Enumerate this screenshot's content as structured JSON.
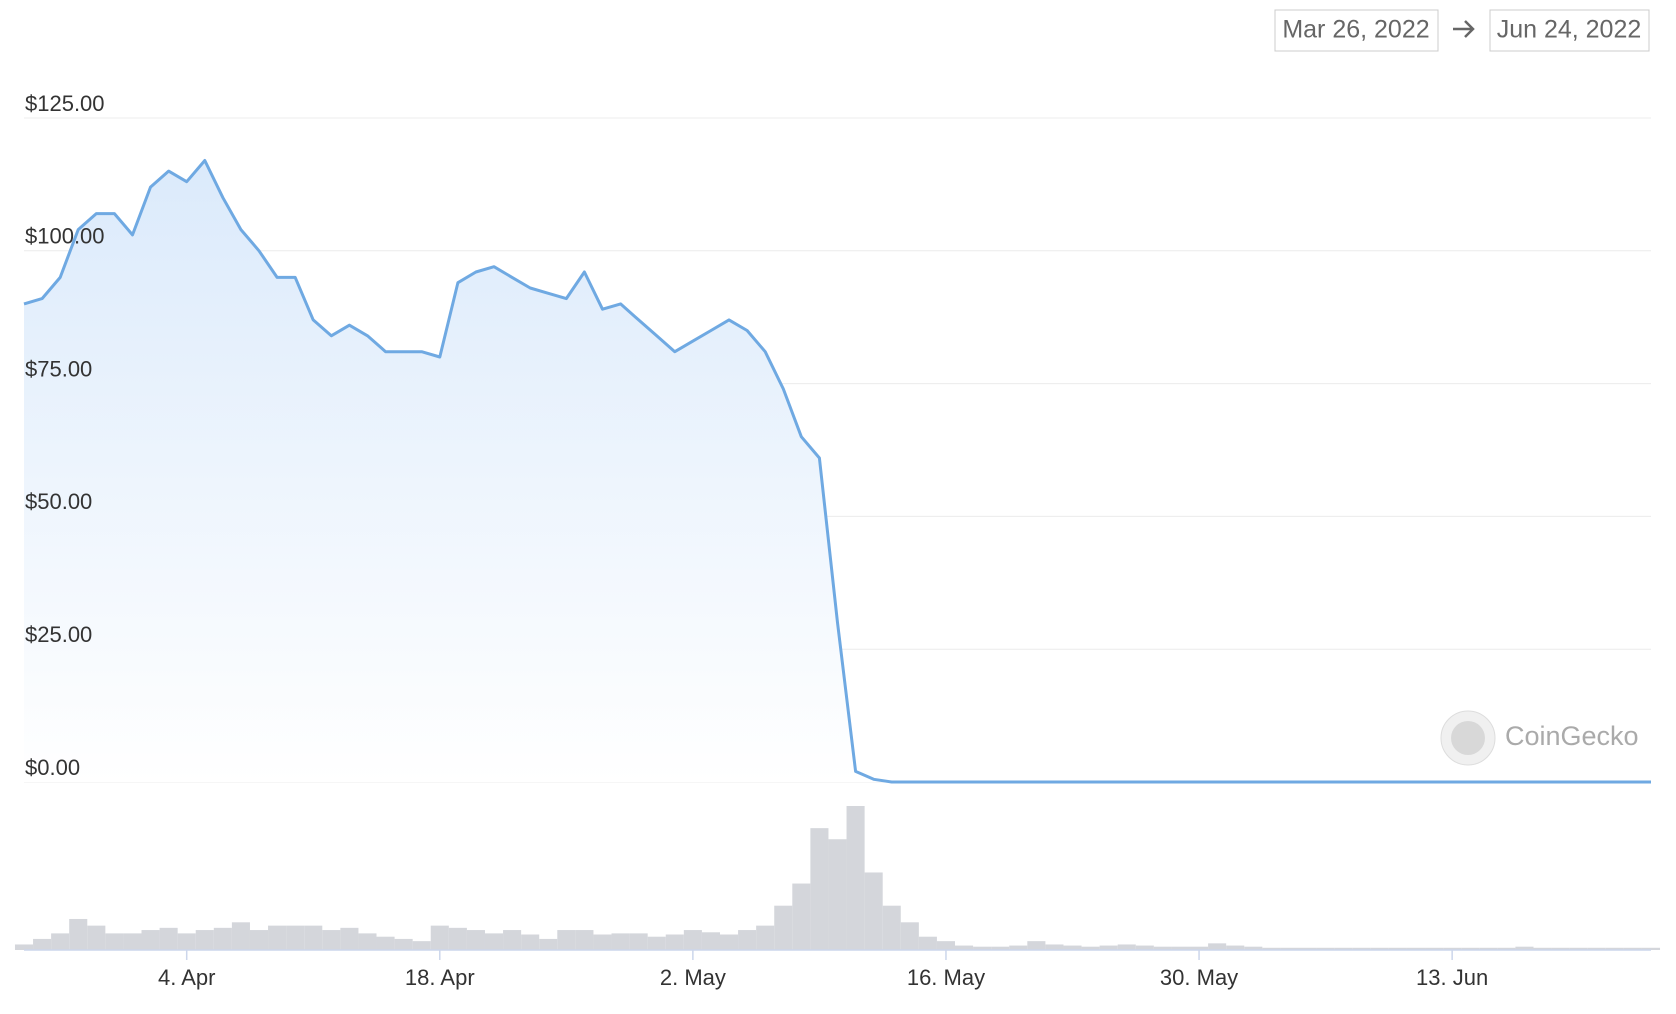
{
  "chart_data": {
    "type": "line",
    "range_start": "Mar 26, 2022",
    "range_end": "Jun 24, 2022",
    "watermark": "CoinGecko",
    "color": "#6fa9e2",
    "volume_color": "#d4d6db",
    "x": [
      "2022-03-26",
      "2022-03-27",
      "2022-03-28",
      "2022-03-29",
      "2022-03-30",
      "2022-03-31",
      "2022-04-01",
      "2022-04-02",
      "2022-04-03",
      "2022-04-04",
      "2022-04-05",
      "2022-04-06",
      "2022-04-07",
      "2022-04-08",
      "2022-04-09",
      "2022-04-10",
      "2022-04-11",
      "2022-04-12",
      "2022-04-13",
      "2022-04-14",
      "2022-04-15",
      "2022-04-16",
      "2022-04-17",
      "2022-04-18",
      "2022-04-19",
      "2022-04-20",
      "2022-04-21",
      "2022-04-22",
      "2022-04-23",
      "2022-04-24",
      "2022-04-25",
      "2022-04-26",
      "2022-04-27",
      "2022-04-28",
      "2022-04-29",
      "2022-04-30",
      "2022-05-01",
      "2022-05-02",
      "2022-05-03",
      "2022-05-04",
      "2022-05-05",
      "2022-05-06",
      "2022-05-07",
      "2022-05-08",
      "2022-05-09",
      "2022-05-10",
      "2022-05-11",
      "2022-05-12",
      "2022-05-13",
      "2022-05-14",
      "2022-05-15",
      "2022-05-16",
      "2022-05-17",
      "2022-05-18",
      "2022-05-19",
      "2022-05-20",
      "2022-05-21",
      "2022-05-22",
      "2022-05-23",
      "2022-05-24",
      "2022-05-25",
      "2022-05-26",
      "2022-05-27",
      "2022-05-28",
      "2022-05-29",
      "2022-05-30",
      "2022-05-31",
      "2022-06-01",
      "2022-06-02",
      "2022-06-03",
      "2022-06-04",
      "2022-06-05",
      "2022-06-06",
      "2022-06-07",
      "2022-06-08",
      "2022-06-09",
      "2022-06-10",
      "2022-06-11",
      "2022-06-12",
      "2022-06-13",
      "2022-06-14",
      "2022-06-15",
      "2022-06-16",
      "2022-06-17",
      "2022-06-18",
      "2022-06-19",
      "2022-06-20",
      "2022-06-21",
      "2022-06-22",
      "2022-06-23",
      "2022-06-24"
    ],
    "values": [
      90,
      91,
      95,
      104,
      107,
      107,
      103,
      112,
      115,
      113,
      117,
      110,
      104,
      100,
      95,
      95,
      87,
      84,
      86,
      84,
      81,
      81,
      81,
      80,
      94,
      96,
      97,
      95,
      93,
      92,
      91,
      96,
      89,
      90,
      87,
      84,
      81,
      83,
      85,
      87,
      85,
      81,
      74,
      65,
      61,
      30,
      2,
      0.5,
      0.0001,
      0.0001,
      0.0001,
      0.0001,
      0.0001,
      0.0001,
      0.0001,
      0.0001,
      0.0001,
      0.0001,
      0.0001,
      0.0001,
      0.0001,
      0.0001,
      0.0001,
      0.0001,
      0.0001,
      0.0001,
      0.0001,
      0.0001,
      0.0001,
      0.0001,
      0.0001,
      0.0001,
      0.0001,
      0.0001,
      0.0001,
      0.0001,
      0.0001,
      0.0001,
      0.0001,
      0.0001,
      0.0001,
      0.0001,
      0.0001,
      0.0001,
      0.0001,
      0.0001,
      0.0001,
      0.0001,
      0.0001,
      0.0001,
      0.0001
    ],
    "volume": [
      5,
      10,
      15,
      28,
      22,
      15,
      15,
      18,
      20,
      15,
      18,
      20,
      25,
      18,
      22,
      22,
      22,
      18,
      20,
      15,
      12,
      10,
      8,
      22,
      20,
      18,
      15,
      18,
      14,
      10,
      18,
      18,
      14,
      15,
      15,
      12,
      14,
      18,
      16,
      14,
      18,
      22,
      40,
      60,
      110,
      100,
      130,
      70,
      40,
      25,
      12,
      8,
      4,
      3,
      3,
      4,
      8,
      5,
      4,
      3,
      4,
      5,
      4,
      3,
      3,
      3,
      6,
      4,
      3,
      2,
      2,
      2,
      2,
      2,
      2,
      2,
      2,
      2,
      2,
      2,
      2,
      2,
      2,
      3,
      2,
      2,
      2,
      2,
      2,
      2,
      2
    ],
    "xlim": [
      "2022-03-26",
      "2022-06-24"
    ],
    "xticks": [
      {
        "value": "2022-04-04",
        "label": "4. Apr"
      },
      {
        "value": "2022-04-18",
        "label": "18. Apr"
      },
      {
        "value": "2022-05-02",
        "label": "2. May"
      },
      {
        "value": "2022-05-16",
        "label": "16. May"
      },
      {
        "value": "2022-05-30",
        "label": "30. May"
      },
      {
        "value": "2022-06-13",
        "label": "13. Jun"
      }
    ],
    "ylim": [
      0,
      125
    ],
    "yticks": [
      {
        "value": 0,
        "label": "$0.00"
      },
      {
        "value": 25,
        "label": "$25.00"
      },
      {
        "value": 50,
        "label": "$50.00"
      },
      {
        "value": 75,
        "label": "$75.00"
      },
      {
        "value": 100,
        "label": "$100.00"
      },
      {
        "value": 125,
        "label": "$125.00"
      }
    ],
    "grid": true
  }
}
